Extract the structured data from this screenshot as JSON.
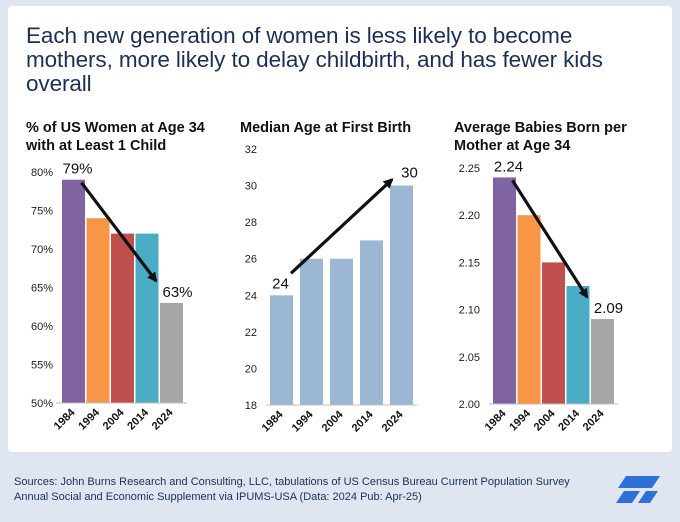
{
  "headline": "Each new generation of women is less likely to become mothers, more likely to delay childbirth, and has fewer kids overall",
  "footer": {
    "sources": "Sources: John Burns Research and Consulting, LLC, tabulations of US Census Bureau Current Population Survey Annual Social and Economic Supplement via IPUMS-USA (Data: 2024 Pub: Apr-25)"
  },
  "colors": {
    "navy": "#1c2f55",
    "purple": "#8064a2",
    "orange": "#f79646",
    "red": "#c0504d",
    "teal": "#4bacc6",
    "gray": "#a6a6a6",
    "lightblue": "#9bb7d4",
    "logo_blue": "#2e6fd8"
  },
  "chart_data": [
    {
      "type": "bar",
      "title": "% of US Women at Age 34 with at Least 1 Child",
      "categories": [
        "1984",
        "1994",
        "2004",
        "2014",
        "2024"
      ],
      "values": [
        79,
        74,
        72,
        72,
        63
      ],
      "colors": [
        "#8064a2",
        "#f79646",
        "#c0504d",
        "#4bacc6",
        "#a6a6a6"
      ],
      "ylim": [
        50,
        80
      ],
      "yticks": [
        50,
        55,
        60,
        65,
        70,
        75,
        80
      ],
      "ytick_labels": [
        "50%",
        "55%",
        "60%",
        "65%",
        "70%",
        "75%",
        "80%"
      ],
      "data_labels": [
        {
          "index": 0,
          "text": "79%"
        },
        {
          "index": 4,
          "text": "63%"
        }
      ],
      "trend_arrow": {
        "from_index": 0,
        "to_index": 4
      }
    },
    {
      "type": "bar",
      "title": "Median Age at First Birth",
      "categories": [
        "1984",
        "1994",
        "2004",
        "2014",
        "2024"
      ],
      "values": [
        24,
        26,
        26,
        27,
        30
      ],
      "colors": [
        "#9bb7d4",
        "#9bb7d4",
        "#9bb7d4",
        "#9bb7d4",
        "#9bb7d4"
      ],
      "ylim": [
        18,
        32
      ],
      "yticks": [
        18,
        20,
        22,
        24,
        26,
        28,
        30,
        32
      ],
      "ytick_labels": [
        "18",
        "20",
        "22",
        "24",
        "26",
        "28",
        "30",
        "32"
      ],
      "data_labels": [
        {
          "index": 0,
          "text": "24"
        },
        {
          "index": 4,
          "text": "30"
        }
      ],
      "trend_arrow": {
        "from_index": 0,
        "to_index": 4
      }
    },
    {
      "type": "bar",
      "title": "Average Babies Born per Mother at Age 34",
      "categories": [
        "1984",
        "1994",
        "2004",
        "2014",
        "2024"
      ],
      "values": [
        2.24,
        2.2,
        2.15,
        2.125,
        2.09
      ],
      "colors": [
        "#8064a2",
        "#f79646",
        "#c0504d",
        "#4bacc6",
        "#a6a6a6"
      ],
      "ylim": [
        2.0,
        2.25
      ],
      "yticks": [
        2.0,
        2.05,
        2.1,
        2.15,
        2.2,
        2.25
      ],
      "ytick_labels": [
        "2.00",
        "2.05",
        "2.10",
        "2.15",
        "2.20",
        "2.25"
      ],
      "data_labels": [
        {
          "index": 0,
          "text": "2.24"
        },
        {
          "index": 4,
          "text": "2.09"
        }
      ],
      "trend_arrow": {
        "from_index": 0,
        "to_index": 4
      }
    }
  ]
}
